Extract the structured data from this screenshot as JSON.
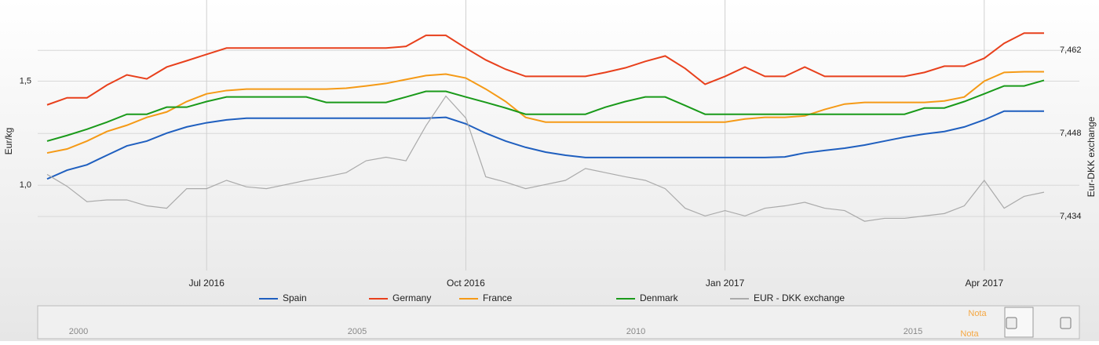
{
  "chart_data": {
    "type": "line",
    "y_label": "Eur/kg",
    "y2_label": "Eur-DKK exchange",
    "categories": [
      null,
      null,
      null,
      null,
      null,
      null,
      null,
      null,
      "Jul 2016",
      null,
      null,
      null,
      null,
      null,
      null,
      null,
      null,
      null,
      null,
      null,
      null,
      "Oct 2016",
      null,
      null,
      null,
      null,
      null,
      null,
      null,
      null,
      null,
      null,
      null,
      null,
      "Jan 2017",
      null,
      null,
      null,
      null,
      null,
      null,
      null,
      null,
      null,
      null,
      null,
      null,
      "Apr 2017",
      null,
      null,
      null
    ],
    "ylim": [
      0.59,
      1.89
    ],
    "yticks": [
      {
        "value": 1.0,
        "label": "1,0"
      },
      {
        "value": 1.5,
        "label": "1,5"
      }
    ],
    "y2lim": [
      7.4249,
      7.4705
    ],
    "y2ticks": [
      {
        "value": 7.434,
        "label": "7,434"
      },
      {
        "value": 7.448,
        "label": "7,448"
      },
      {
        "value": 7.462,
        "label": "7,462"
      }
    ],
    "grid": true,
    "series": [
      {
        "name": "Spain",
        "color": "#1f5fbf",
        "values": [
          1.03,
          1.072,
          1.098,
          1.144,
          1.189,
          1.212,
          1.25,
          1.28,
          1.3,
          1.314,
          1.322,
          1.322,
          1.322,
          1.322,
          1.322,
          1.322,
          1.322,
          1.322,
          1.322,
          1.322,
          1.326,
          1.295,
          1.25,
          1.212,
          1.182,
          1.159,
          1.144,
          1.133,
          1.133,
          1.133,
          1.133,
          1.133,
          1.133,
          1.133,
          1.133,
          1.133,
          1.133,
          1.136,
          1.155,
          1.167,
          1.178,
          1.193,
          1.212,
          1.231,
          1.246,
          1.258,
          1.28,
          1.314,
          1.356,
          1.356,
          1.356
        ]
      },
      {
        "name": "Germany",
        "color": "#e8401c",
        "values": [
          1.386,
          1.42,
          1.42,
          1.481,
          1.53,
          1.511,
          1.568,
          1.598,
          1.629,
          1.659,
          1.659,
          1.659,
          1.659,
          1.659,
          1.659,
          1.659,
          1.659,
          1.659,
          1.667,
          1.72,
          1.72,
          1.659,
          1.602,
          1.557,
          1.523,
          1.523,
          1.523,
          1.523,
          1.542,
          1.564,
          1.595,
          1.621,
          1.561,
          1.485,
          1.523,
          1.568,
          1.523,
          1.523,
          1.568,
          1.523,
          1.523,
          1.523,
          1.523,
          1.523,
          1.542,
          1.572,
          1.572,
          1.61,
          1.682,
          1.731,
          1.731
        ]
      },
      {
        "name": "France",
        "color": "#f59a16",
        "values": [
          1.155,
          1.174,
          1.212,
          1.258,
          1.288,
          1.326,
          1.352,
          1.402,
          1.439,
          1.455,
          1.462,
          1.462,
          1.462,
          1.462,
          1.462,
          1.466,
          1.477,
          1.489,
          1.508,
          1.527,
          1.534,
          1.515,
          1.462,
          1.402,
          1.326,
          1.303,
          1.303,
          1.303,
          1.303,
          1.303,
          1.303,
          1.303,
          1.303,
          1.303,
          1.303,
          1.318,
          1.326,
          1.326,
          1.333,
          1.364,
          1.39,
          1.398,
          1.398,
          1.398,
          1.398,
          1.405,
          1.424,
          1.5,
          1.542,
          1.545,
          1.545
        ]
      },
      {
        "name": "Denmark",
        "color": "#1a9a1a",
        "values": [
          1.212,
          1.239,
          1.269,
          1.303,
          1.341,
          1.341,
          1.375,
          1.375,
          1.402,
          1.424,
          1.424,
          1.424,
          1.424,
          1.424,
          1.398,
          1.398,
          1.398,
          1.398,
          1.424,
          1.451,
          1.451,
          1.424,
          1.398,
          1.371,
          1.341,
          1.341,
          1.341,
          1.341,
          1.375,
          1.402,
          1.424,
          1.424,
          1.383,
          1.341,
          1.341,
          1.341,
          1.341,
          1.341,
          1.341,
          1.341,
          1.341,
          1.341,
          1.341,
          1.341,
          1.371,
          1.371,
          1.402,
          1.439,
          1.477,
          1.477,
          1.504
        ]
      },
      {
        "name": "EUR - DKK exchange",
        "color": "#aaaaaa",
        "axis": "y2",
        "values": [
          7.4411,
          7.4391,
          7.4365,
          7.4368,
          7.4368,
          7.4358,
          7.4354,
          7.4387,
          7.4387,
          7.4401,
          7.439,
          7.4387,
          7.4394,
          7.4401,
          7.4407,
          7.4414,
          7.4434,
          7.444,
          7.4434,
          7.4493,
          7.4543,
          7.4506,
          7.4407,
          7.4398,
          7.4387,
          7.4394,
          7.4401,
          7.4421,
          7.4414,
          7.4407,
          7.4401,
          7.4387,
          7.4354,
          7.4341,
          7.435,
          7.4341,
          7.4354,
          7.4358,
          7.4364,
          7.4354,
          7.435,
          7.4332,
          7.4337,
          7.4337,
          7.4341,
          7.4345,
          7.4358,
          7.4401,
          7.4354,
          7.4374,
          7.4381
        ]
      }
    ],
    "navigator": {
      "labels": [
        "2000",
        "2005",
        "2010",
        "2015"
      ],
      "series_labels": [
        "Nota",
        "Nota"
      ]
    }
  }
}
